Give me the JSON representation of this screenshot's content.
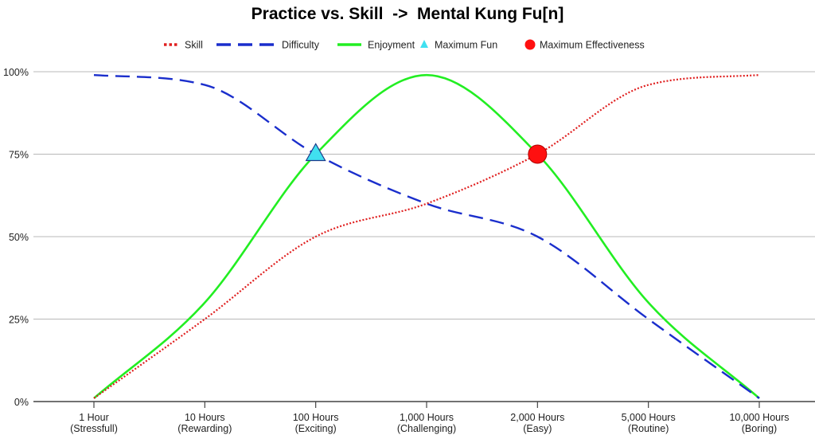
{
  "chart_data": {
    "type": "line",
    "title": "Practice vs. Skill  ->  Mental Kung Fu[n]",
    "xlabel": "",
    "ylabel": "",
    "categories": [
      [
        "1 Hour",
        "(Stressfull)"
      ],
      [
        "10 Hours",
        "(Rewarding)"
      ],
      [
        "100 Hours",
        "(Exciting)"
      ],
      [
        "1,000 Hours",
        "(Challenging)"
      ],
      [
        "2,000 Hours",
        "(Easy)"
      ],
      [
        "5,000 Hours",
        "(Routine)"
      ],
      [
        "10,000 Hours",
        "(Boring)"
      ]
    ],
    "yticks": [
      "0%",
      "25%",
      "50%",
      "75%",
      "100%"
    ],
    "ylim": [
      0,
      100
    ],
    "grid": true,
    "legend_position": "top",
    "series": [
      {
        "name": "Skill",
        "style": "dotted",
        "color": "#e02020",
        "values": [
          1,
          25,
          50,
          60,
          75,
          96,
          99
        ]
      },
      {
        "name": "Difficulty",
        "style": "dashed",
        "color": "#1a2ecc",
        "values": [
          99,
          96,
          75,
          60,
          50,
          25,
          1
        ]
      },
      {
        "name": "Enjoyment",
        "style": "solid",
        "color": "#22ee22",
        "values": [
          1,
          30,
          75,
          99,
          75,
          30,
          1
        ]
      }
    ],
    "markers": [
      {
        "name": "Maximum Fun",
        "shape": "triangle",
        "color": "#40e0f0",
        "x": "100 Hours",
        "y": 75
      },
      {
        "name": "Maximum Effectiveness",
        "shape": "circle",
        "color": "#ff1010",
        "x": "2,000 Hours",
        "y": 75
      }
    ]
  }
}
